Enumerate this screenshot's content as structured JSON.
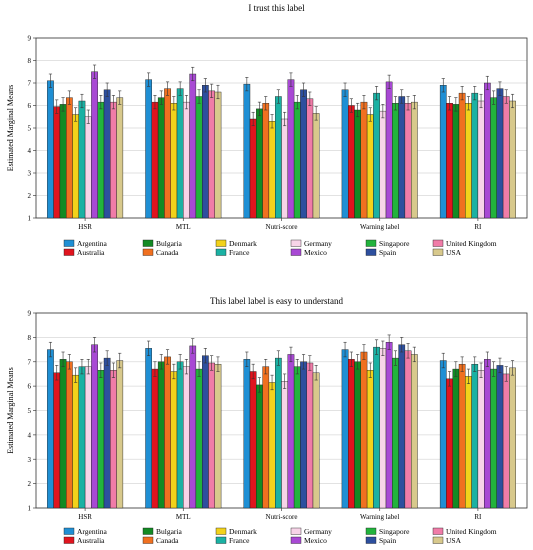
{
  "chart_data": [
    {
      "type": "bar",
      "title": "I trust this label",
      "ylabel": "Estimated Marginal Means",
      "xlabel": "",
      "ylim": [
        1,
        9
      ],
      "yticks": [
        1,
        2,
        3,
        4,
        5,
        6,
        7,
        8,
        9
      ],
      "categories": [
        "HSR",
        "MTL",
        "Nutri-score",
        "Warning label",
        "RI"
      ],
      "legend_position": "bottom",
      "error_bars": true,
      "series": [
        {
          "name": "Argentina",
          "color": "#1f8fd4",
          "values": [
            7.1,
            7.15,
            6.95,
            6.7,
            6.9
          ],
          "errors": [
            0.3,
            0.3,
            0.3,
            0.3,
            0.3
          ]
        },
        {
          "name": "Australia",
          "color": "#e0141e",
          "values": [
            5.95,
            6.15,
            5.4,
            6.0,
            6.1
          ],
          "errors": [
            0.3,
            0.3,
            0.3,
            0.3,
            0.3
          ]
        },
        {
          "name": "Bulgaria",
          "color": "#138a24",
          "values": [
            6.05,
            6.35,
            5.85,
            5.8,
            6.05
          ],
          "errors": [
            0.3,
            0.3,
            0.3,
            0.3,
            0.3
          ]
        },
        {
          "name": "Canada",
          "color": "#f07020",
          "values": [
            6.35,
            6.75,
            6.1,
            6.15,
            6.55
          ],
          "errors": [
            0.3,
            0.3,
            0.3,
            0.3,
            0.3
          ]
        },
        {
          "name": "Denmark",
          "color": "#f2d21b",
          "values": [
            5.6,
            6.1,
            5.3,
            5.6,
            6.1
          ],
          "errors": [
            0.3,
            0.3,
            0.3,
            0.3,
            0.3
          ]
        },
        {
          "name": "France",
          "color": "#1ab1a3",
          "values": [
            6.2,
            6.75,
            6.4,
            6.55,
            6.55
          ],
          "errors": [
            0.3,
            0.3,
            0.3,
            0.3,
            0.3
          ]
        },
        {
          "name": "Germany",
          "color": "#f7d4e8",
          "values": [
            5.5,
            6.15,
            5.4,
            5.75,
            6.2
          ],
          "errors": [
            0.3,
            0.3,
            0.3,
            0.3,
            0.3
          ]
        },
        {
          "name": "Mexico",
          "color": "#a849d4",
          "values": [
            7.5,
            7.4,
            7.15,
            7.05,
            7.0
          ],
          "errors": [
            0.3,
            0.3,
            0.3,
            0.3,
            0.3
          ]
        },
        {
          "name": "Singapore",
          "color": "#22b33c",
          "values": [
            6.15,
            6.4,
            6.15,
            6.1,
            6.35
          ],
          "errors": [
            0.3,
            0.3,
            0.3,
            0.3,
            0.3
          ]
        },
        {
          "name": "Spain",
          "color": "#2d4f9e",
          "values": [
            6.7,
            6.9,
            6.7,
            6.4,
            6.75
          ],
          "errors": [
            0.3,
            0.3,
            0.3,
            0.3,
            0.3
          ]
        },
        {
          "name": "United Kingdom",
          "color": "#f07ca8",
          "values": [
            6.15,
            6.65,
            6.3,
            6.1,
            6.4
          ],
          "errors": [
            0.3,
            0.3,
            0.3,
            0.3,
            0.3
          ]
        },
        {
          "name": "USA",
          "color": "#d8c98c",
          "values": [
            6.35,
            6.6,
            5.65,
            6.15,
            6.2
          ],
          "errors": [
            0.3,
            0.3,
            0.3,
            0.3,
            0.3
          ]
        }
      ]
    },
    {
      "type": "bar",
      "title": "This label label is easy to understand",
      "ylabel": "Estimated Marginal Means",
      "xlabel": "",
      "ylim": [
        1,
        9
      ],
      "yticks": [
        1,
        2,
        3,
        4,
        5,
        6,
        7,
        8,
        9
      ],
      "categories": [
        "HSR",
        "MTL",
        "Nutri-score",
        "Warning label",
        "RI"
      ],
      "legend_position": "bottom",
      "error_bars": true,
      "series": [
        {
          "name": "Argentina",
          "color": "#1f8fd4",
          "values": [
            7.5,
            7.55,
            7.1,
            7.5,
            7.05
          ],
          "errors": [
            0.3,
            0.3,
            0.3,
            0.3,
            0.3
          ]
        },
        {
          "name": "Australia",
          "color": "#e0141e",
          "values": [
            6.55,
            6.7,
            6.6,
            7.1,
            6.3
          ],
          "errors": [
            0.3,
            0.3,
            0.3,
            0.3,
            0.3
          ]
        },
        {
          "name": "Bulgaria",
          "color": "#138a24",
          "values": [
            7.1,
            7.0,
            6.05,
            7.0,
            6.7
          ],
          "errors": [
            0.3,
            0.3,
            0.3,
            0.3,
            0.3
          ]
        },
        {
          "name": "Canada",
          "color": "#f07020",
          "values": [
            7.0,
            7.2,
            6.8,
            7.4,
            6.9
          ],
          "errors": [
            0.3,
            0.3,
            0.3,
            0.3,
            0.3
          ]
        },
        {
          "name": "Denmark",
          "color": "#f2d21b",
          "values": [
            6.45,
            6.6,
            6.15,
            6.65,
            6.4
          ],
          "errors": [
            0.3,
            0.3,
            0.3,
            0.3,
            0.3
          ]
        },
        {
          "name": "France",
          "color": "#1ab1a3",
          "values": [
            6.8,
            7.0,
            7.15,
            7.6,
            6.9
          ],
          "errors": [
            0.3,
            0.3,
            0.3,
            0.3,
            0.3
          ]
        },
        {
          "name": "Germany",
          "color": "#f7d4e8",
          "values": [
            6.8,
            6.8,
            6.2,
            7.55,
            6.65
          ],
          "errors": [
            0.3,
            0.3,
            0.3,
            0.3,
            0.3
          ]
        },
        {
          "name": "Mexico",
          "color": "#a849d4",
          "values": [
            7.7,
            7.65,
            7.3,
            7.8,
            7.1
          ],
          "errors": [
            0.3,
            0.3,
            0.3,
            0.3,
            0.3
          ]
        },
        {
          "name": "Singapore",
          "color": "#22b33c",
          "values": [
            6.65,
            6.7,
            6.8,
            7.15,
            6.7
          ],
          "errors": [
            0.3,
            0.3,
            0.3,
            0.3,
            0.3
          ]
        },
        {
          "name": "Spain",
          "color": "#2d4f9e",
          "values": [
            7.15,
            7.25,
            7.0,
            7.7,
            6.85
          ],
          "errors": [
            0.3,
            0.3,
            0.3,
            0.3,
            0.3
          ]
        },
        {
          "name": "United Kingdom",
          "color": "#f07ca8",
          "values": [
            6.65,
            6.95,
            6.95,
            7.45,
            6.5
          ],
          "errors": [
            0.3,
            0.3,
            0.3,
            0.3,
            0.3
          ]
        },
        {
          "name": "USA",
          "color": "#d8c98c",
          "values": [
            7.05,
            6.9,
            6.55,
            7.3,
            6.75
          ],
          "errors": [
            0.3,
            0.3,
            0.3,
            0.3,
            0.3
          ]
        }
      ]
    }
  ]
}
